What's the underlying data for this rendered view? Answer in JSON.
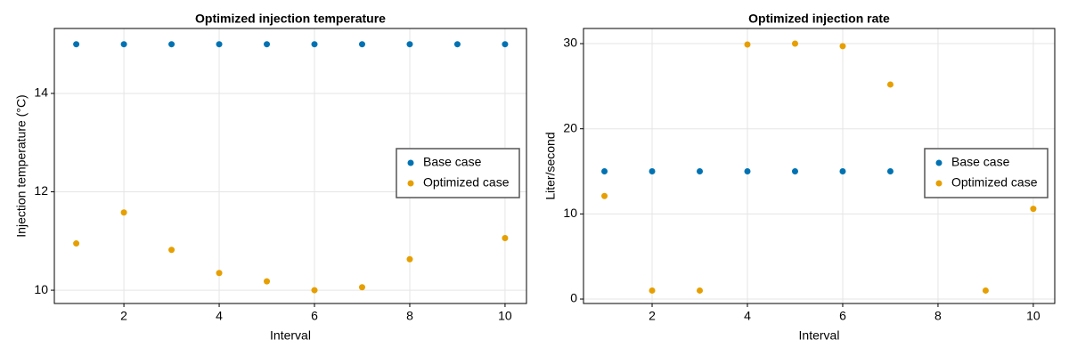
{
  "chart_data": [
    {
      "type": "scatter",
      "title": "Optimized injection temperature",
      "x_label": "Interval",
      "y_label": "Injection temperature (°C)",
      "x": [
        1,
        2,
        3,
        4,
        5,
        6,
        7,
        8,
        9,
        10
      ],
      "series": [
        {
          "name": "Base case",
          "color": "#0072b2",
          "values": [
            15,
            15,
            15,
            15,
            15,
            15,
            15,
            15,
            15,
            15
          ]
        },
        {
          "name": "Optimized case",
          "color": "#e69f00",
          "values": [
            10.95,
            11.58,
            10.82,
            10.35,
            10.18,
            10.0,
            10.06,
            10.63,
            null,
            11.06
          ]
        }
      ],
      "xlim": [
        0.54,
        10.45
      ],
      "ylim": [
        9.73,
        15.32
      ],
      "xticks": [
        2,
        4,
        6,
        8,
        10
      ],
      "yticks": [
        10,
        12,
        14
      ],
      "grid": true,
      "legend": "right"
    },
    {
      "type": "scatter",
      "title": "Optimized injection rate",
      "x_label": "Interval",
      "y_label": "Liter/second",
      "x": [
        1,
        2,
        3,
        4,
        5,
        6,
        7,
        8,
        9,
        10
      ],
      "series": [
        {
          "name": "Base case",
          "color": "#0072b2",
          "values": [
            15,
            15,
            15,
            15,
            15,
            15,
            15,
            null,
            null,
            null
          ]
        },
        {
          "name": "Optimized case",
          "color": "#e69f00",
          "values": [
            12.1,
            1,
            1,
            29.9,
            30,
            29.7,
            25.2,
            null,
            1,
            10.6
          ]
        }
      ],
      "xlim": [
        0.56,
        10.45
      ],
      "ylim": [
        -0.52,
        31.78
      ],
      "xticks": [
        2,
        4,
        6,
        8,
        10
      ],
      "yticks": [
        0,
        10,
        20,
        30
      ],
      "grid": true,
      "legend": "right"
    }
  ]
}
